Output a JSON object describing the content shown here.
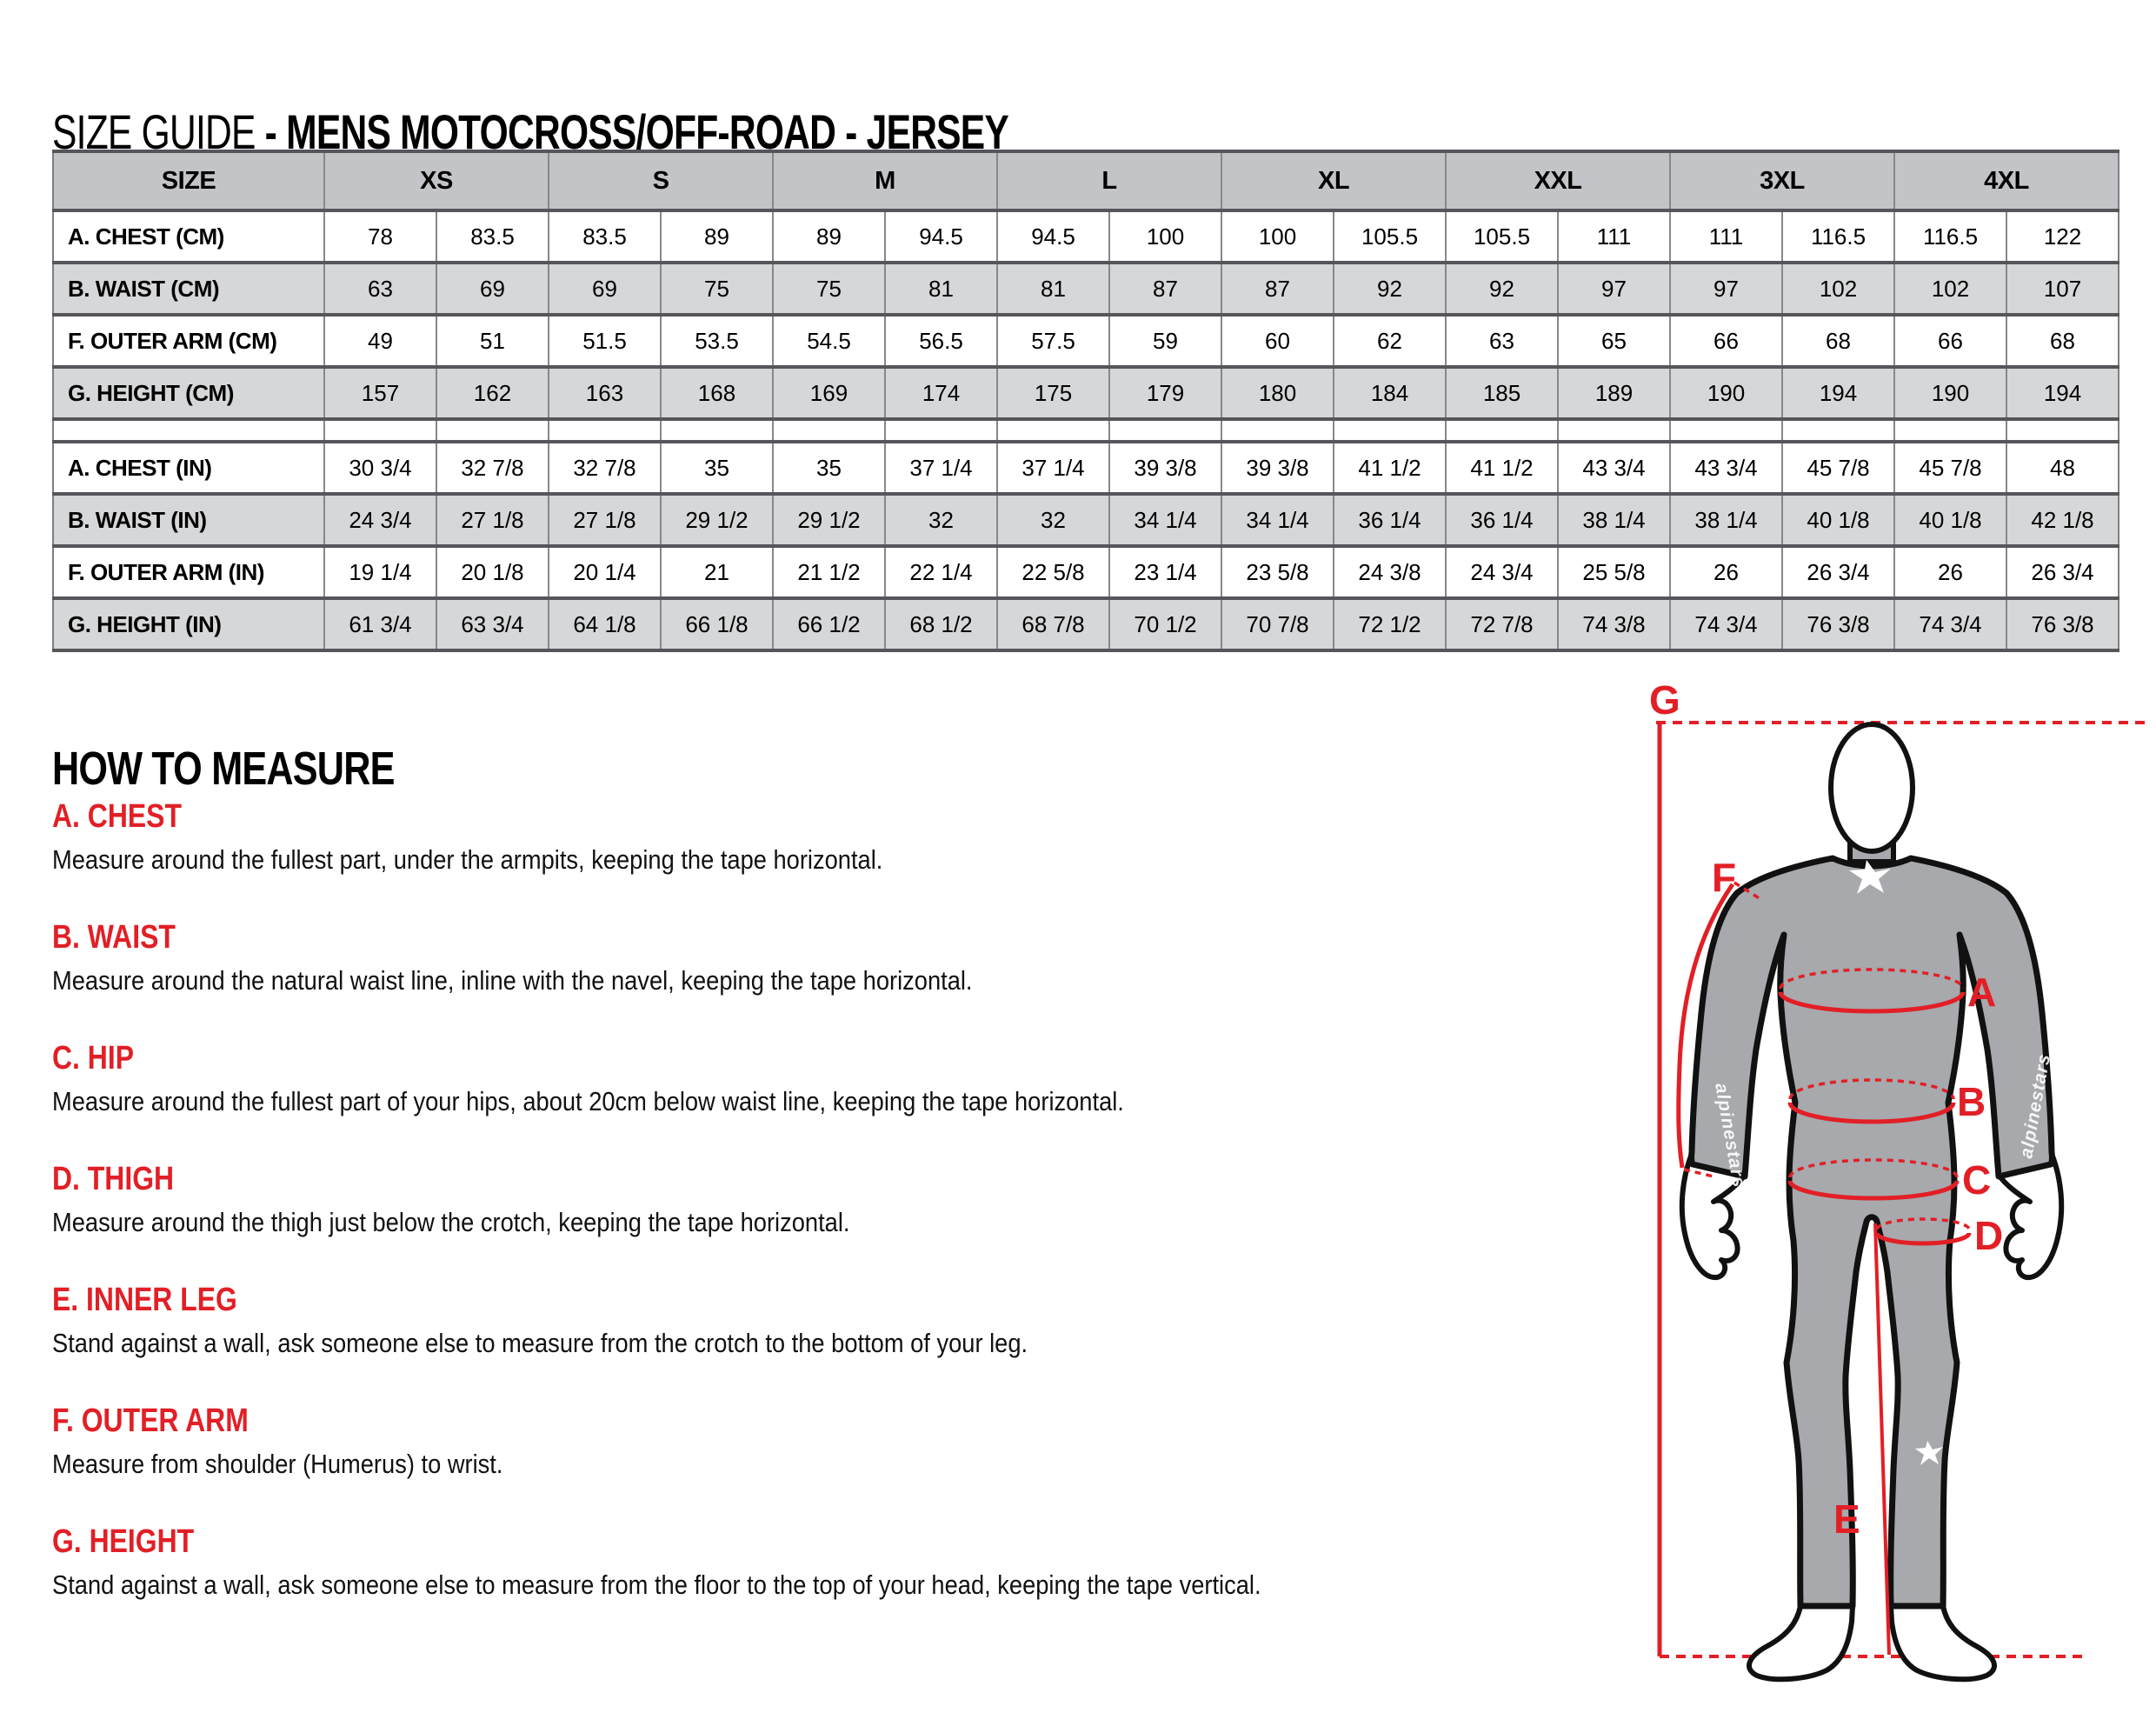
{
  "title": {
    "regular": "SIZE GUIDE",
    "bold": "- MENS MOTOCROSS/OFF-ROAD - JERSEY"
  },
  "colors": {
    "accent_red": "#e21f26",
    "table_header_gray": "#c3c4c7",
    "table_alt_row_gray": "#d6d7d9",
    "suit_gray": "#a7a9ac"
  },
  "table": {
    "size_label": "SIZE",
    "sizes": [
      "XS",
      "S",
      "M",
      "L",
      "XL",
      "XXL",
      "3XL",
      "4XL"
    ],
    "rows_cm": [
      {
        "label": "A. CHEST (CM)",
        "values": [
          "78",
          "83.5",
          "83.5",
          "89",
          "89",
          "94.5",
          "94.5",
          "100",
          "100",
          "105.5",
          "105.5",
          "111",
          "111",
          "116.5",
          "116.5",
          "122"
        ]
      },
      {
        "label": "B. WAIST (CM)",
        "values": [
          "63",
          "69",
          "69",
          "75",
          "75",
          "81",
          "81",
          "87",
          "87",
          "92",
          "92",
          "97",
          "97",
          "102",
          "102",
          "107"
        ]
      },
      {
        "label": "F. OUTER ARM (CM)",
        "values": [
          "49",
          "51",
          "51.5",
          "53.5",
          "54.5",
          "56.5",
          "57.5",
          "59",
          "60",
          "62",
          "63",
          "65",
          "66",
          "68",
          "66",
          "68"
        ]
      },
      {
        "label": "G. HEIGHT (CM)",
        "values": [
          "157",
          "162",
          "163",
          "168",
          "169",
          "174",
          "175",
          "179",
          "180",
          "184",
          "185",
          "189",
          "190",
          "194",
          "190",
          "194"
        ]
      }
    ],
    "rows_in": [
      {
        "label": "A. CHEST (IN)",
        "values": [
          "30 3/4",
          "32 7/8",
          "32 7/8",
          "35",
          "35",
          "37 1/4",
          "37 1/4",
          "39 3/8",
          "39 3/8",
          "41 1/2",
          "41 1/2",
          "43 3/4",
          "43 3/4",
          "45 7/8",
          "45 7/8",
          "48"
        ]
      },
      {
        "label": "B. WAIST (IN)",
        "values": [
          "24 3/4",
          "27 1/8",
          "27 1/8",
          "29 1/2",
          "29 1/2",
          "32",
          "32",
          "34 1/4",
          "34 1/4",
          "36 1/4",
          "36 1/4",
          "38 1/4",
          "38 1/4",
          "40 1/8",
          "40 1/8",
          "42 1/8"
        ]
      },
      {
        "label": "F. OUTER ARM (IN)",
        "values": [
          "19 1/4",
          "20 1/8",
          "20 1/4",
          "21",
          "21 1/2",
          "22 1/4",
          "22 5/8",
          "23 1/4",
          "23 5/8",
          "24 3/8",
          "24 3/4",
          "25 5/8",
          "26",
          "26 3/4",
          "26",
          "26 3/4"
        ]
      },
      {
        "label": "G. HEIGHT (IN)",
        "values": [
          "61 3/4",
          "63 3/4",
          "64 1/8",
          "66 1/8",
          "66 1/2",
          "68 1/2",
          "68 7/8",
          "70 1/2",
          "70 7/8",
          "72 1/2",
          "72 7/8",
          "74 3/8",
          "74 3/4",
          "76 3/8",
          "74 3/4",
          "76 3/8"
        ]
      }
    ]
  },
  "how_to_measure": {
    "heading": "HOW TO MEASURE",
    "sections": [
      {
        "heading": "A. CHEST",
        "text": "Measure around the fullest part, under the armpits, keeping the tape horizontal."
      },
      {
        "heading": "B. WAIST",
        "text": "Measure around the natural waist line, inline with the navel, keeping the tape horizontal."
      },
      {
        "heading": "C. HIP",
        "text": "Measure around the fullest part of your hips, about 20cm below waist line, keeping the tape horizontal."
      },
      {
        "heading": "D. THIGH",
        "text": "Measure around the thigh just below the crotch, keeping the tape horizontal."
      },
      {
        "heading": "E. INNER LEG",
        "text": "Stand against a wall, ask someone else to measure from the crotch to the bottom of your leg."
      },
      {
        "heading": "F. OUTER ARM",
        "text": "Measure from shoulder (Humerus) to wrist."
      },
      {
        "heading": "G. HEIGHT",
        "text": "Stand against a wall, ask someone else to measure from the floor to the top of your head, keeping the tape vertical."
      }
    ]
  },
  "diagram": {
    "brand": "alpinestars",
    "labels": {
      "chest": "A",
      "waist": "B",
      "hip": "C",
      "thigh": "D",
      "inner_leg": "E",
      "outer_arm": "F",
      "height": "G"
    }
  }
}
